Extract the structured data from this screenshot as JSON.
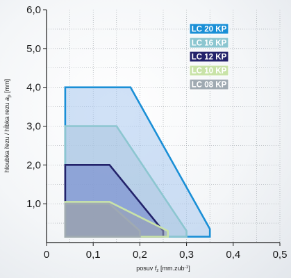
{
  "chart_data": {
    "type": "area",
    "xlabel": "posuv f_z [mm.zub⁻¹]",
    "xlabel_parts": {
      "pre": "posuv ",
      "sym": "f",
      "sub": "z",
      "post": " [mm.zub",
      "sup": "-1",
      "end": "]"
    },
    "ylabel": "hloubka řezu / hĺbka rezu a_p [mm]",
    "ylabel_parts": {
      "pre": "hloubka řezu / hĺbka rezu ",
      "sym": "a",
      "sub": "p",
      "post": " [mm]"
    },
    "xlim": [
      0,
      0.5
    ],
    "ylim": [
      0,
      6
    ],
    "x_ticks": [
      0,
      0.1,
      0.2,
      0.3,
      0.4,
      0.5
    ],
    "x_tick_labels": [
      "0",
      "0,1",
      "0,2",
      "0,3",
      "0,4",
      "0,5"
    ],
    "y_ticks": [
      1,
      2,
      3,
      4,
      5,
      6
    ],
    "y_tick_labels": [
      "1,0",
      "2,0",
      "3,0",
      "4,0",
      "5,0",
      "6,0"
    ],
    "grid": "dotted",
    "legend_position": "top-right",
    "series": [
      {
        "name": "LC 20 KP",
        "color": "#1a8fd6",
        "fill": "#a9c9ee",
        "points": [
          [
            0.04,
            0.15
          ],
          [
            0.04,
            4.0
          ],
          [
            0.18,
            4.0
          ],
          [
            0.35,
            0.35
          ],
          [
            0.35,
            0.15
          ]
        ]
      },
      {
        "name": "LC 16 KP",
        "color": "#8cc6d0",
        "fill": "#a9c4de",
        "points": [
          [
            0.04,
            0.15
          ],
          [
            0.04,
            3.0
          ],
          [
            0.15,
            3.0
          ],
          [
            0.3,
            0.3
          ],
          [
            0.3,
            0.15
          ]
        ]
      },
      {
        "name": "LC 12 KP",
        "color": "#23236b",
        "fill": "#6b7fc9",
        "points": [
          [
            0.04,
            0.15
          ],
          [
            0.04,
            2.0
          ],
          [
            0.135,
            2.0
          ],
          [
            0.25,
            0.3
          ],
          [
            0.25,
            0.15
          ]
        ]
      },
      {
        "name": "LC 10 KP",
        "color": "#c9e3a8",
        "fill": "#9aa3b0",
        "points": [
          [
            0.04,
            0.15
          ],
          [
            0.04,
            1.05
          ],
          [
            0.135,
            1.05
          ],
          [
            0.26,
            0.3
          ],
          [
            0.26,
            0.15
          ]
        ]
      },
      {
        "name": "LC 08 KP",
        "color": "#a0aab2",
        "fill": "#9aa3ad",
        "points": [
          [
            0.04,
            0.15
          ],
          [
            0.04,
            1.0
          ],
          [
            0.135,
            1.0
          ],
          [
            0.2,
            0.3
          ],
          [
            0.2,
            0.15
          ]
        ]
      }
    ]
  }
}
